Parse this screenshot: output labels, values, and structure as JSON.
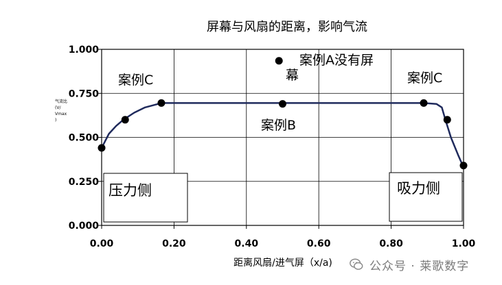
{
  "chart_data": {
    "type": "line",
    "title": "屏幕与风扇的距离，影响气流",
    "xlabel": "距离风扇/进气屏（x/a)",
    "ylabel_lines": [
      "气流比",
      "(V/",
      "Vmax",
      ")"
    ],
    "xlim": [
      0,
      1
    ],
    "ylim": [
      0,
      1
    ],
    "x_ticks": [
      "0.00",
      "0.20",
      "0.40",
      "0.60",
      "0.80",
      "1.00"
    ],
    "y_ticks": [
      "0.000",
      "0.250",
      "0.500",
      "0.750",
      "1.000"
    ],
    "grid": true,
    "series": [
      {
        "curve_x": [
          0.0,
          0.02,
          0.04,
          0.06,
          0.09,
          0.12,
          0.165,
          0.3,
          0.5,
          0.7,
          0.89,
          0.925,
          0.94,
          0.95,
          0.965,
          0.985,
          1.0
        ],
        "curve_y": [
          0.44,
          0.52,
          0.565,
          0.6,
          0.64,
          0.67,
          0.695,
          0.695,
          0.695,
          0.695,
          0.695,
          0.69,
          0.67,
          0.6,
          0.5,
          0.4,
          0.33
        ],
        "marker_x": [
          0.0,
          0.065,
          0.165,
          0.5,
          0.89,
          0.955,
          1.0
        ],
        "marker_y": [
          0.44,
          0.6,
          0.695,
          0.69,
          0.695,
          0.6,
          0.34
        ]
      }
    ],
    "extra_points": [
      {
        "x": 0.49,
        "y": 0.935
      }
    ],
    "annotations": [
      {
        "label": "案例C"
      },
      {
        "label": "案例A没有屏"
      },
      {
        "label": "幕"
      },
      {
        "label": "案例C"
      },
      {
        "label": "案例B"
      }
    ],
    "boxes": [
      {
        "label": "压力侧"
      },
      {
        "label": "吸力侧"
      }
    ],
    "colors": {
      "line": "#1f2a5c",
      "marker": "#000000",
      "grid": "#000000",
      "text": "#000000"
    }
  },
  "watermark": {
    "text": "公众号 · 莱歌数字",
    "icon": "wechat-icon"
  }
}
